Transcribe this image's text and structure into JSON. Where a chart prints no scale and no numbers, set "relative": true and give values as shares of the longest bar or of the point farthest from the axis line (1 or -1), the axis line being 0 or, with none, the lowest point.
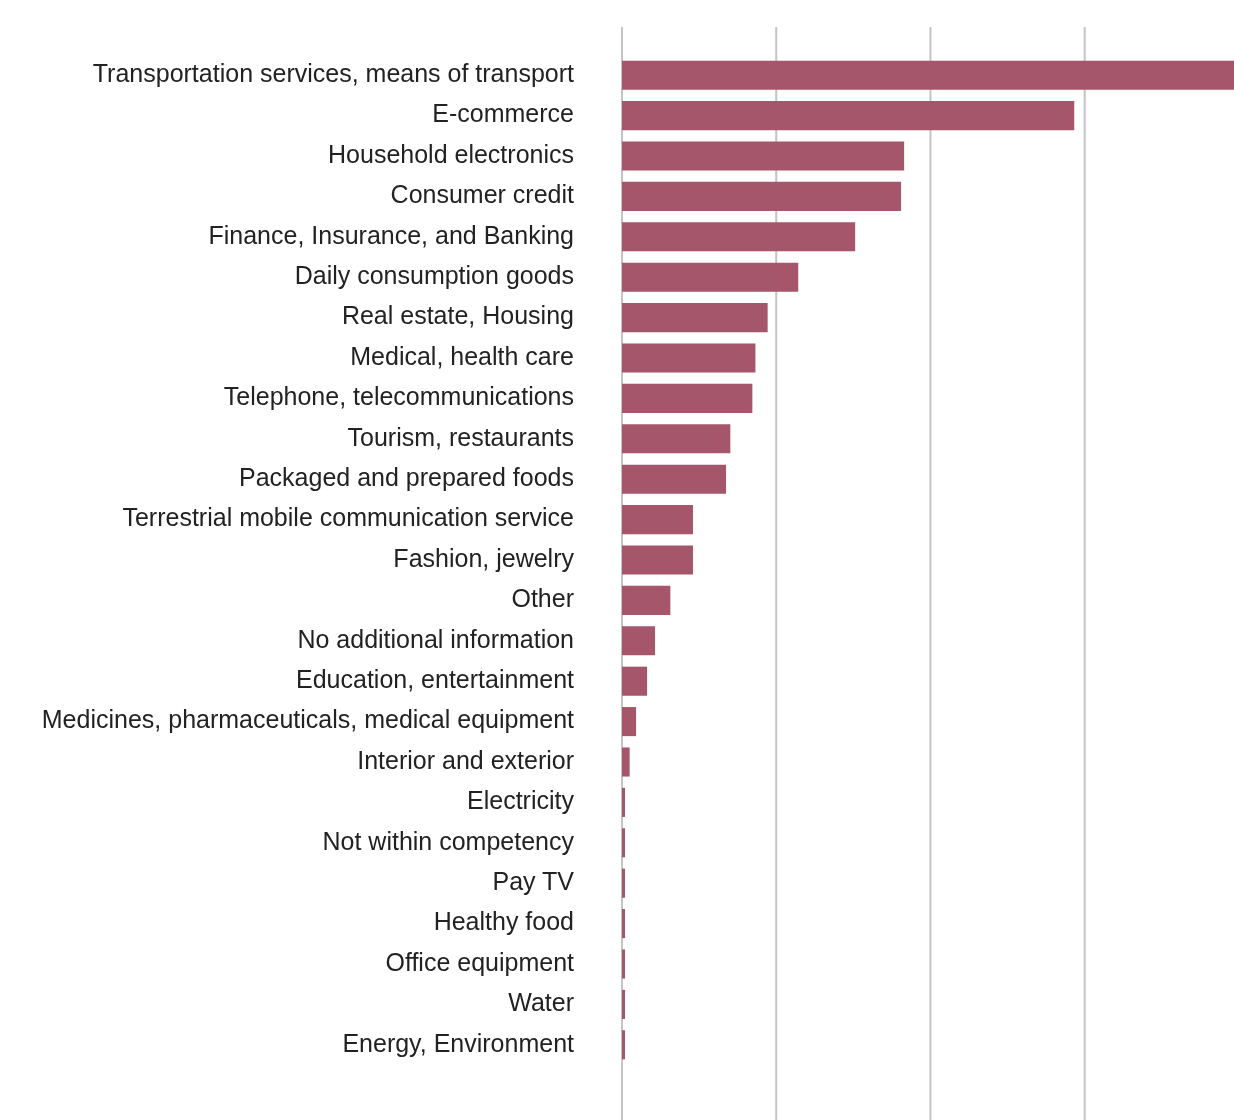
{
  "chart_data": {
    "type": "bar",
    "orientation": "horizontal",
    "relative": true,
    "legend": false,
    "ref_lines": [
      {
        "axis": "x",
        "value": 0,
        "color": "#c4c4c4"
      },
      {
        "axis": "x",
        "value": 0.252,
        "color": "#c4c4c4"
      },
      {
        "axis": "x",
        "value": 0.504,
        "color": "#c4c4c4"
      },
      {
        "axis": "x",
        "value": 0.756,
        "color": "#c4c4c4"
      }
    ],
    "color": "#a5566b",
    "categories": [
      "Transportation services, means of transport",
      "E-commerce",
      "Household electronics",
      "Consumer credit",
      "Finance, Insurance, and Banking",
      "Daily consumption goods",
      "Real estate, Housing",
      "Medical, health care",
      "Telephone, telecommunications",
      "Tourism, restaurants",
      "Packaged and prepared foods",
      "Terrestrial mobile communication service",
      "Fashion, jewelry",
      "Other",
      "No additional information",
      "Education, entertainment",
      "Medicines, pharmaceuticals, medical equipment",
      "Interior and exterior",
      "Electricity",
      "Not within competency",
      "Pay TV",
      "Healthy food",
      "Office equipment",
      "Water",
      "Energy, Environment"
    ],
    "values": [
      1,
      0.739,
      0.461,
      0.456,
      0.381,
      0.288,
      0.238,
      0.218,
      0.213,
      0.177,
      0.17,
      0.116,
      0.116,
      0.079,
      0.054,
      0.041,
      0.023,
      0.0125,
      0.005,
      0.005,
      0.005,
      0.005,
      0.005,
      0.005,
      0.005
    ]
  }
}
